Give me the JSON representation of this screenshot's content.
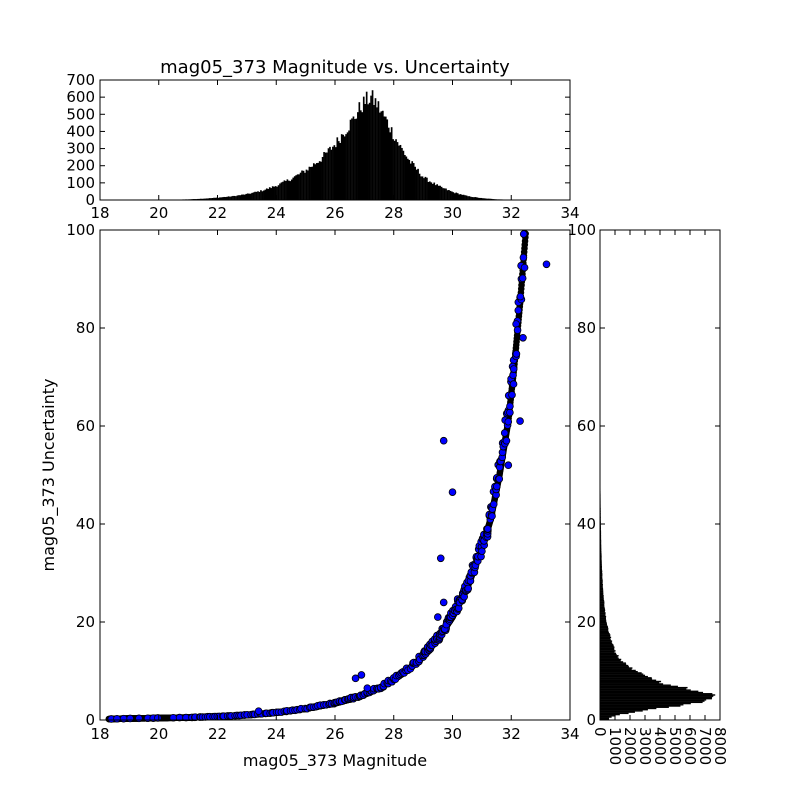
{
  "chart_data": [
    {
      "type": "histogram",
      "panel": "top",
      "title": "mag05_373 Magnitude vs. Uncertainty",
      "xlim": [
        18,
        34
      ],
      "ylim": [
        0,
        700
      ],
      "xticks": [
        "18",
        "20",
        "22",
        "24",
        "26",
        "28",
        "30",
        "32",
        "34"
      ],
      "yticks": [
        "0",
        "100",
        "200",
        "300",
        "400",
        "500",
        "600",
        "700"
      ],
      "x": [
        18.4,
        19.5,
        20.5,
        21.0,
        21.5,
        22.0,
        22.5,
        23.0,
        23.5,
        24.0,
        24.5,
        25.0,
        25.5,
        26.0,
        26.3,
        26.6,
        26.8,
        27.0,
        27.2,
        27.4,
        27.6,
        27.8,
        28.0,
        28.2,
        28.5,
        28.8,
        29.0,
        29.5,
        30.0,
        30.5,
        31.0,
        31.5,
        32.0,
        32.3
      ],
      "counts": [
        2,
        1,
        2,
        4,
        8,
        14,
        22,
        35,
        55,
        85,
        125,
        175,
        240,
        330,
        400,
        470,
        530,
        575,
        600,
        560,
        500,
        440,
        370,
        310,
        230,
        170,
        130,
        80,
        45,
        22,
        10,
        4,
        2,
        1
      ]
    },
    {
      "type": "scatter",
      "panel": "main",
      "xlabel": "mag05_373 Magnitude",
      "ylabel": "mag05_373 Uncertainty",
      "xlim": [
        18,
        34
      ],
      "ylim": [
        0,
        100
      ],
      "xticks": [
        "18",
        "20",
        "22",
        "24",
        "26",
        "28",
        "30",
        "32",
        "34"
      ],
      "yticks": [
        "0",
        "20",
        "40",
        "60",
        "80",
        "100"
      ],
      "marker_color": "#0000ff",
      "curve_x": [
        18.3,
        19,
        20,
        21,
        22,
        23,
        24,
        25,
        26,
        26.5,
        27,
        27.5,
        28,
        28.5,
        29,
        29.5,
        30,
        30.5,
        31,
        31.3,
        31.6,
        31.9,
        32.1,
        32.3,
        32.5
      ],
      "curve_y": [
        0.2,
        0.3,
        0.4,
        0.5,
        0.7,
        1.0,
        1.5,
        2.3,
        3.4,
        4.2,
        5.2,
        6.5,
        8.2,
        10.3,
        13.0,
        16.5,
        21.0,
        27.0,
        35.0,
        41.0,
        50.0,
        61.0,
        72.0,
        85.0,
        100.0
      ],
      "outliers": [
        {
          "x": 29.7,
          "y": 57
        },
        {
          "x": 30.0,
          "y": 46.5
        },
        {
          "x": 29.6,
          "y": 33
        },
        {
          "x": 33.2,
          "y": 93
        },
        {
          "x": 32.3,
          "y": 61
        },
        {
          "x": 32.4,
          "y": 78
        },
        {
          "x": 26.7,
          "y": 8.5
        },
        {
          "x": 26.9,
          "y": 9.2
        },
        {
          "x": 27.1,
          "y": 6.5
        },
        {
          "x": 23.4,
          "y": 1.8
        },
        {
          "x": 29.7,
          "y": 24
        },
        {
          "x": 29.5,
          "y": 21
        },
        {
          "x": 31.9,
          "y": 52
        },
        {
          "x": 31.2,
          "y": 39
        }
      ]
    },
    {
      "type": "histogram-horizontal",
      "panel": "right",
      "xlim": [
        0,
        8000
      ],
      "ylim": [
        0,
        100
      ],
      "xticks": [
        "0",
        "1000",
        "2000",
        "3000",
        "4000",
        "5000",
        "6000",
        "7000",
        "8000"
      ],
      "yticks": [
        "0",
        "20",
        "40",
        "60",
        "80",
        "100"
      ],
      "y": [
        0.5,
        1,
        1.5,
        2,
        2.5,
        3,
        3.5,
        4,
        4.5,
        5,
        5.5,
        6,
        6.5,
        7,
        7.5,
        8,
        9,
        10,
        11,
        12,
        13,
        14,
        16,
        18,
        20,
        22,
        25,
        28,
        32,
        36,
        40,
        45,
        50,
        55,
        60
      ],
      "counts": [
        600,
        1200,
        2000,
        3000,
        4200,
        5400,
        6300,
        7000,
        7400,
        7600,
        7200,
        6600,
        5800,
        5000,
        4300,
        3700,
        3000,
        2400,
        1900,
        1500,
        1200,
        1000,
        800,
        600,
        450,
        350,
        250,
        180,
        120,
        80,
        60,
        40,
        25,
        15,
        8
      ]
    }
  ]
}
